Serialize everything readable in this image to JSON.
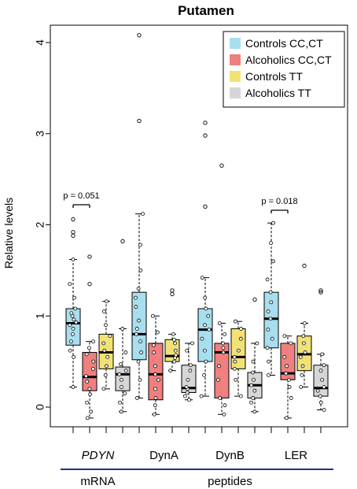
{
  "chart_data": {
    "type": "box",
    "title": "Putamen",
    "ylabel": "Relative levels",
    "ylim": [
      -0.25,
      4.25
    ],
    "yticks": [
      0,
      1,
      2,
      3,
      4
    ],
    "grid": false,
    "legend_position": "top-right",
    "series": [
      {
        "name": "Controls CC,CT",
        "color": "#a8dff0"
      },
      {
        "name": "Alcoholics CC,CT",
        "color": "#f07f7f"
      },
      {
        "name": "Controls TT",
        "color": "#f2e276"
      },
      {
        "name": "Alcoholics TT",
        "color": "#d6d6d6"
      }
    ],
    "groups": [
      {
        "label": "PDYN",
        "italic": true,
        "boxes": [
          {
            "q1": 0.68,
            "median": 0.92,
            "q3": 1.08,
            "whisker_low": 0.22,
            "whisker_high": 1.62,
            "outliers": [
              1.88,
              1.92,
              2.06
            ],
            "points": [
              0.22,
              0.55,
              0.62,
              0.72,
              0.8,
              0.86,
              0.9,
              0.93,
              0.96,
              1.0,
              1.03,
              1.08,
              1.2,
              1.35,
              1.62,
              1.88,
              1.92,
              2.06
            ]
          },
          {
            "q1": 0.18,
            "median": 0.33,
            "q3": 0.6,
            "whisker_low": -0.12,
            "whisker_high": 0.72,
            "outliers": [
              1.35,
              1.65
            ],
            "points": [
              -0.12,
              -0.05,
              0.05,
              0.14,
              0.2,
              0.28,
              0.34,
              0.42,
              0.5,
              0.58,
              0.65,
              0.72,
              1.35,
              1.65
            ]
          },
          {
            "q1": 0.42,
            "median": 0.6,
            "q3": 0.8,
            "whisker_low": 0.2,
            "whisker_high": 1.16,
            "outliers": [],
            "points": [
              0.2,
              0.35,
              0.45,
              0.55,
              0.62,
              0.7,
              0.78,
              0.9,
              1.05,
              1.16
            ]
          },
          {
            "q1": 0.18,
            "median": 0.36,
            "q3": 0.44,
            "whisker_low": -0.05,
            "whisker_high": 0.86,
            "outliers": [
              1.82
            ],
            "points": [
              -0.05,
              0.05,
              0.15,
              0.22,
              0.3,
              0.36,
              0.4,
              0.47,
              0.6,
              0.86,
              1.82
            ]
          }
        ]
      },
      {
        "label": "DynA",
        "italic": false,
        "boxes": [
          {
            "q1": 0.52,
            "median": 0.8,
            "q3": 1.26,
            "whisker_low": 0.1,
            "whisker_high": 2.12,
            "outliers": [
              3.14,
              4.08
            ],
            "points": [
              0.1,
              0.3,
              0.5,
              0.6,
              0.72,
              0.8,
              0.86,
              0.95,
              1.1,
              1.2,
              1.3,
              1.5,
              1.78,
              2.12,
              3.14,
              4.08
            ]
          },
          {
            "q1": 0.08,
            "median": 0.36,
            "q3": 0.7,
            "whisker_low": -0.08,
            "whisker_high": 1.0,
            "outliers": [],
            "points": [
              -0.08,
              0.02,
              0.1,
              0.2,
              0.3,
              0.36,
              0.45,
              0.6,
              0.68,
              0.82,
              1.0
            ]
          },
          {
            "q1": 0.5,
            "median": 0.56,
            "q3": 0.74,
            "whisker_low": 0.4,
            "whisker_high": 0.8,
            "outliers": [
              1.24,
              1.28
            ],
            "points": [
              0.4,
              0.5,
              0.54,
              0.57,
              0.62,
              0.7,
              0.74,
              0.8,
              1.24,
              1.28
            ]
          },
          {
            "q1": 0.16,
            "median": 0.21,
            "q3": 0.46,
            "whisker_low": 0.08,
            "whisker_high": 0.7,
            "outliers": [],
            "points": [
              0.08,
              0.12,
              0.16,
              0.2,
              0.22,
              0.3,
              0.4,
              0.46,
              0.62,
              0.7
            ]
          }
        ]
      },
      {
        "label": "DynB",
        "italic": false,
        "boxes": [
          {
            "q1": 0.5,
            "median": 0.85,
            "q3": 1.08,
            "whisker_low": 0.12,
            "whisker_high": 1.42,
            "outliers": [
              2.2,
              2.98,
              3.12
            ],
            "points": [
              0.12,
              0.35,
              0.5,
              0.62,
              0.75,
              0.85,
              0.9,
              1.0,
              1.08,
              1.2,
              1.42,
              2.2,
              2.98,
              3.12
            ]
          },
          {
            "q1": 0.1,
            "median": 0.6,
            "q3": 0.7,
            "whisker_low": -0.08,
            "whisker_high": 0.92,
            "outliers": [
              2.65
            ],
            "points": [
              -0.08,
              0.02,
              0.1,
              0.3,
              0.45,
              0.6,
              0.65,
              0.7,
              0.8,
              0.92,
              2.65
            ]
          },
          {
            "q1": 0.42,
            "median": 0.55,
            "q3": 0.86,
            "whisker_low": 0.12,
            "whisker_high": 0.94,
            "outliers": [],
            "points": [
              0.12,
              0.3,
              0.42,
              0.5,
              0.55,
              0.62,
              0.75,
              0.86,
              0.94
            ]
          },
          {
            "q1": 0.1,
            "median": 0.24,
            "q3": 0.38,
            "whisker_low": -0.05,
            "whisker_high": 0.7,
            "outliers": [
              1.18
            ],
            "points": [
              -0.05,
              0.05,
              0.1,
              0.18,
              0.24,
              0.3,
              0.38,
              0.5,
              0.7,
              1.18
            ]
          }
        ]
      },
      {
        "label": "LER",
        "italic": false,
        "boxes": [
          {
            "q1": 0.65,
            "median": 0.97,
            "q3": 1.26,
            "whisker_low": 0.35,
            "whisker_high": 2.02,
            "outliers": [],
            "points": [
              0.35,
              0.5,
              0.65,
              0.75,
              0.85,
              0.97,
              1.05,
              1.15,
              1.26,
              1.4,
              1.6,
              1.8,
              2.02
            ]
          },
          {
            "q1": 0.3,
            "median": 0.37,
            "q3": 0.7,
            "whisker_low": -0.12,
            "whisker_high": 0.78,
            "outliers": [],
            "points": [
              -0.12,
              0.1,
              0.22,
              0.3,
              0.37,
              0.45,
              0.55,
              0.7,
              0.78
            ]
          },
          {
            "q1": 0.4,
            "median": 0.58,
            "q3": 0.78,
            "whisker_low": 0.22,
            "whisker_high": 0.92,
            "outliers": [
              1.55
            ],
            "points": [
              0.22,
              0.35,
              0.45,
              0.55,
              0.6,
              0.7,
              0.78,
              0.92,
              1.55
            ]
          },
          {
            "q1": 0.12,
            "median": 0.21,
            "q3": 0.46,
            "whisker_low": -0.03,
            "whisker_high": 0.58,
            "outliers": [
              1.26,
              1.28
            ],
            "points": [
              -0.03,
              0.05,
              0.12,
              0.18,
              0.22,
              0.3,
              0.4,
              0.46,
              0.58,
              1.26,
              1.28
            ]
          }
        ]
      }
    ],
    "annotations": [
      {
        "text": "p = 0.051",
        "group": 0,
        "from": 0,
        "to": 1,
        "y": 2.22
      },
      {
        "text": "p = 0.018",
        "group": 3,
        "from": 0,
        "to": 1,
        "y": 2.16
      }
    ],
    "bottom_groups": [
      {
        "label": "mRNA",
        "span": [
          0,
          0
        ],
        "line_color": "#1f2f8f"
      },
      {
        "label": "peptides",
        "span": [
          1,
          3
        ],
        "line_color": "#1f2f8f"
      }
    ]
  }
}
